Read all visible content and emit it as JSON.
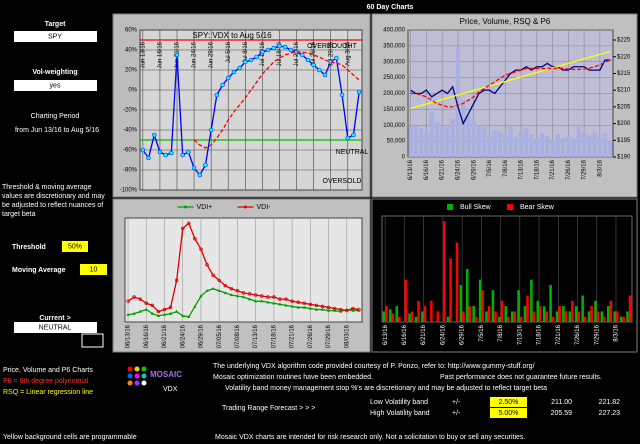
{
  "title": "60 Day Charts",
  "sidebar": {
    "target_label": "Target",
    "target": "SPY",
    "vol_label": "Vol-weighting",
    "vol": "yes",
    "period_label": "Charting Period",
    "period": "from Jun 13/16 to Aug 5/16",
    "note": "Threshold & moving average values are discretionary and may be adjusted to reflect nuances of target beta",
    "threshold_label": "Threshold",
    "threshold": "50%",
    "ma_label": "Moving Average",
    "ma": "10",
    "current_label": "Current >",
    "current": "NEUTRAL"
  },
  "chart_data": [
    {
      "type": "line",
      "title": "SPY:   VDX to Aug 5/16",
      "categories": [
        "Jun 13/16",
        null,
        null,
        "Jun 16/16",
        null,
        null,
        "Jun 21/16",
        null,
        null,
        "Jun 24/16",
        null,
        null,
        "Jun 29/16",
        null,
        null,
        "Jul 5/16",
        null,
        null,
        "Jul 8/16",
        null,
        null,
        "Jul 13/16",
        null,
        null,
        "Jul 18/16",
        null,
        null,
        "Jul 21/16",
        null,
        null,
        "Jul 26/16",
        null,
        null,
        "Jul 29/16",
        null,
        null,
        "Aug 3/16",
        null,
        null
      ],
      "series": [
        {
          "color": "#0000ff",
          "marker_color": "#00ffff",
          "values": [
            -60,
            -68,
            -45,
            -62,
            -65,
            -63,
            35,
            -65,
            -62,
            -78,
            -85,
            -75,
            -40,
            -5,
            5,
            12,
            18,
            22,
            28,
            30,
            33,
            38,
            40,
            42,
            44,
            43,
            40,
            38,
            35,
            30,
            25,
            20,
            15,
            28,
            32,
            -5,
            -48,
            -45,
            -2
          ]
        },
        {
          "color": "#ff0000",
          "dash": true,
          "values": [
            null,
            null,
            null,
            null,
            null,
            null,
            null,
            null,
            null,
            -50,
            -55,
            -58,
            -55,
            -48,
            -40,
            -30,
            -22,
            -15,
            -8,
            0,
            8,
            16,
            22,
            28,
            32,
            35,
            37,
            38,
            38,
            37,
            35,
            33,
            30,
            28,
            27,
            25,
            20,
            15,
            10
          ]
        }
      ],
      "ylim": [
        -100,
        60
      ],
      "yticks": [
        {
          "value": 60,
          "label": "60%"
        },
        {
          "value": 40,
          "label": "40%"
        },
        {
          "value": 20,
          "label": "20%"
        },
        {
          "value": 0,
          "label": "0%"
        },
        {
          "value": -20,
          "label": "-20%"
        },
        {
          "value": -40,
          "label": "-40%"
        },
        {
          "value": -60,
          "label": "-60%"
        },
        {
          "value": -80,
          "label": "-80%"
        },
        {
          "value": -100,
          "label": "-100%"
        }
      ],
      "reference_lines": [
        {
          "value": 50,
          "color": "#ff0000"
        },
        {
          "value": -50,
          "color": "#00c000"
        }
      ],
      "annotations": [
        "OVERBOUGHT",
        "NEUTRAL",
        "OVERSOLD"
      ],
      "grid": true
    },
    {
      "type": "bar",
      "title": "Price,  Volume, RSQ & P6",
      "categories": [
        "6/13/16",
        null,
        null,
        "6/16/16",
        null,
        null,
        "6/21/16",
        null,
        null,
        "6/24/16",
        null,
        null,
        "6/29/16",
        null,
        null,
        "7/5/16",
        null,
        null,
        "7/8/16",
        null,
        null,
        "7/13/16",
        null,
        null,
        "7/18/16",
        null,
        null,
        "7/21/16",
        null,
        null,
        "7/26/16",
        null,
        null,
        "7/29/16",
        null,
        null,
        "8/3/16",
        null,
        null
      ],
      "series": [
        {
          "color": "#a8b0e0",
          "values": [
            95000,
            100000,
            90000,
            85000,
            140000,
            110000,
            100000,
            95000,
            120000,
            340000,
            180000,
            130000,
            110000,
            100000,
            95000,
            70000,
            85000,
            80000,
            75000,
            100000,
            65000,
            80000,
            90000,
            70000,
            60000,
            75000,
            65000,
            55000,
            70000,
            60000,
            65000,
            60000,
            95000,
            75000,
            70000,
            80000,
            60000,
            75000,
            50000
          ]
        },
        {
          "type": "line",
          "axis": "y2",
          "color": "#000080",
          "values": [
            210,
            209,
            209,
            210,
            208,
            209,
            210,
            209,
            211,
            205,
            200,
            203,
            206,
            209,
            210,
            210,
            209,
            211,
            213,
            215,
            216,
            216,
            217,
            216,
            217,
            217,
            218,
            217,
            217,
            216,
            216,
            217,
            217,
            217,
            216,
            216,
            216,
            219,
            219
          ]
        },
        {
          "type": "line",
          "axis": "y2",
          "color": "#ffff00",
          "values": [
            204.5,
            204.95,
            205.4,
            205.85,
            206.3,
            206.75,
            207.2,
            207.65,
            208.1,
            208.55,
            209,
            209.45,
            209.9,
            210.35,
            210.8,
            211.25,
            211.7,
            212.15,
            212.6,
            213.05,
            213.5,
            213.95,
            214.4,
            214.85,
            215.3,
            215.75,
            216.2,
            216.65,
            217.1,
            217.55,
            218,
            218.45,
            218.9,
            219.35,
            219.8,
            220.25,
            220.7,
            221.15,
            221.6
          ]
        },
        {
          "type": "line",
          "axis": "y2",
          "color": "#ff0000",
          "dash": true,
          "values": [
            209,
            209,
            208.5,
            208,
            207,
            206,
            205.5,
            205,
            205,
            205.5,
            206,
            207,
            208,
            209.5,
            210.5,
            211.5,
            212.5,
            213.5,
            214.5,
            215,
            215.5,
            216,
            216.5,
            216.5,
            216.5,
            216.5,
            216.5,
            216.5,
            216.5,
            216.5,
            216.3,
            216.2,
            216.2,
            216.3,
            216.6,
            217,
            217.6,
            218.3,
            219.2
          ]
        }
      ],
      "ylim": [
        0,
        400000
      ],
      "yticks": [
        0,
        {
          "value": 50000,
          "label": "50,000"
        },
        {
          "value": 100000,
          "label": "100,000"
        },
        {
          "value": 150000,
          "label": "150,000"
        },
        {
          "value": 200000,
          "label": "200,000"
        },
        {
          "value": 250000,
          "label": "250,000"
        },
        {
          "value": 300000,
          "label": "300,000"
        },
        {
          "value": 350000,
          "label": "350,000"
        },
        {
          "value": 400000,
          "label": "400,000"
        }
      ],
      "y2lim": [
        190,
        228
      ],
      "y2ticks": [
        {
          "value": 190,
          "label": "$190"
        },
        {
          "value": 195,
          "label": "$195"
        },
        {
          "value": 200,
          "label": "$200"
        },
        {
          "value": 205,
          "label": "$205"
        },
        {
          "value": 210,
          "label": "$210"
        },
        {
          "value": 215,
          "label": "$215"
        },
        {
          "value": 220,
          "label": "$220"
        },
        {
          "value": 225,
          "label": "$225"
        }
      ],
      "grid": true
    },
    {
      "type": "line",
      "categories": [
        "06/13/16",
        null,
        null,
        "06/16/16",
        null,
        null,
        "06/21/16",
        null,
        null,
        "06/24/16",
        null,
        null,
        "06/29/16",
        null,
        null,
        "07/05/16",
        null,
        null,
        "07/08/16",
        null,
        null,
        "07/13/16",
        null,
        null,
        "07/18/16",
        null,
        null,
        "07/21/16",
        null,
        null,
        "07/26/16",
        null,
        null,
        "07/29/16",
        null,
        null,
        "08/03/16",
        null,
        null
      ],
      "series": [
        {
          "name": "VDI+",
          "color": "#00a000",
          "marker": "triangle",
          "values": [
            7,
            8,
            10,
            12,
            8,
            6,
            7,
            8,
            10,
            6,
            5,
            15,
            25,
            30,
            32,
            30,
            28,
            26,
            25,
            24,
            22,
            20,
            20,
            19,
            18,
            17,
            16,
            15,
            14,
            14,
            13,
            12,
            12,
            11,
            11,
            10,
            12,
            11,
            11
          ]
        },
        {
          "name": "VDI-",
          "color": "#e00000",
          "marker": "circle",
          "values": [
            20,
            24,
            22,
            18,
            16,
            10,
            12,
            14,
            40,
            90,
            95,
            80,
            70,
            55,
            45,
            40,
            35,
            32,
            30,
            28,
            27,
            26,
            25,
            24,
            24,
            22,
            22,
            20,
            19,
            18,
            17,
            16,
            15,
            14,
            13,
            12,
            11,
            13,
            12
          ]
        }
      ],
      "ylim": [
        0,
        100
      ],
      "legend": "top",
      "grid": true
    },
    {
      "type": "bar",
      "categories": [
        "6/13/16",
        null,
        null,
        "6/16/16",
        null,
        null,
        "6/21/16",
        null,
        null,
        "6/24/16",
        null,
        null,
        "6/29/16",
        null,
        null,
        "7/5/16",
        null,
        null,
        "7/8/16",
        null,
        null,
        "7/13/16",
        null,
        null,
        "7/18/16",
        null,
        null,
        "7/21/16",
        null,
        null,
        "7/26/16",
        null,
        null,
        "7/29/16",
        null,
        null,
        "8/3/16",
        null,
        null
      ],
      "series": [
        {
          "name": "Bull Skew",
          "color": "#00b000",
          "values": [
            10,
            12,
            15,
            0,
            8,
            5,
            10,
            0,
            0,
            0,
            5,
            0,
            35,
            50,
            15,
            40,
            10,
            30,
            5,
            15,
            10,
            30,
            15,
            40,
            20,
            15,
            35,
            10,
            15,
            10,
            15,
            25,
            10,
            20,
            10,
            15,
            10,
            5,
            10
          ]
        },
        {
          "name": "Bear Skew",
          "color": "#ff0000",
          "values": [
            15,
            8,
            5,
            40,
            10,
            20,
            15,
            20,
            10,
            95,
            60,
            75,
            10,
            15,
            5,
            30,
            15,
            10,
            20,
            5,
            10,
            5,
            25,
            10,
            15,
            10,
            5,
            15,
            10,
            20,
            10,
            5,
            15,
            10,
            5,
            20,
            10,
            5,
            25
          ]
        }
      ],
      "ylim": [
        0,
        100
      ],
      "legend": "top",
      "grid": true
    }
  ],
  "footer": {
    "legend_title": "Price, Volume and P6 Charts",
    "p6": "P6 = 6th degree polynomial",
    "rsq": "RSQ = Linear regression line",
    "brand": "MOSAIC",
    "brand_sub": "VDX",
    "credit": "The underlying VDX algorithm code provided courtesy of P. Ponzo, refer to:  http://www.gummy-stuff.org/",
    "optimization": "Mosaic optimization routines have been embedded.",
    "past": "Past performance does not guarantee future results.",
    "volatility_note": "Volatility band money management stop %'s are discretionary and may be adjusted to reflect target beta",
    "forecast": "Trading Range Forecast > > >",
    "bands": [
      {
        "name": "Low Volatility band",
        "sign": "+/-",
        "pct": "2.50%",
        "low": "211.00",
        "high": "221.82"
      },
      {
        "name": "High Volatility band",
        "sign": "+/-",
        "pct": "5.00%",
        "low": "205.59",
        "high": "227.23"
      }
    ],
    "programmable": "Yellow background cells are programmable",
    "disclaimer": "Mosaic VDX charts are intended for risk research only.  Not a solicitation to buy or sell any securities."
  }
}
